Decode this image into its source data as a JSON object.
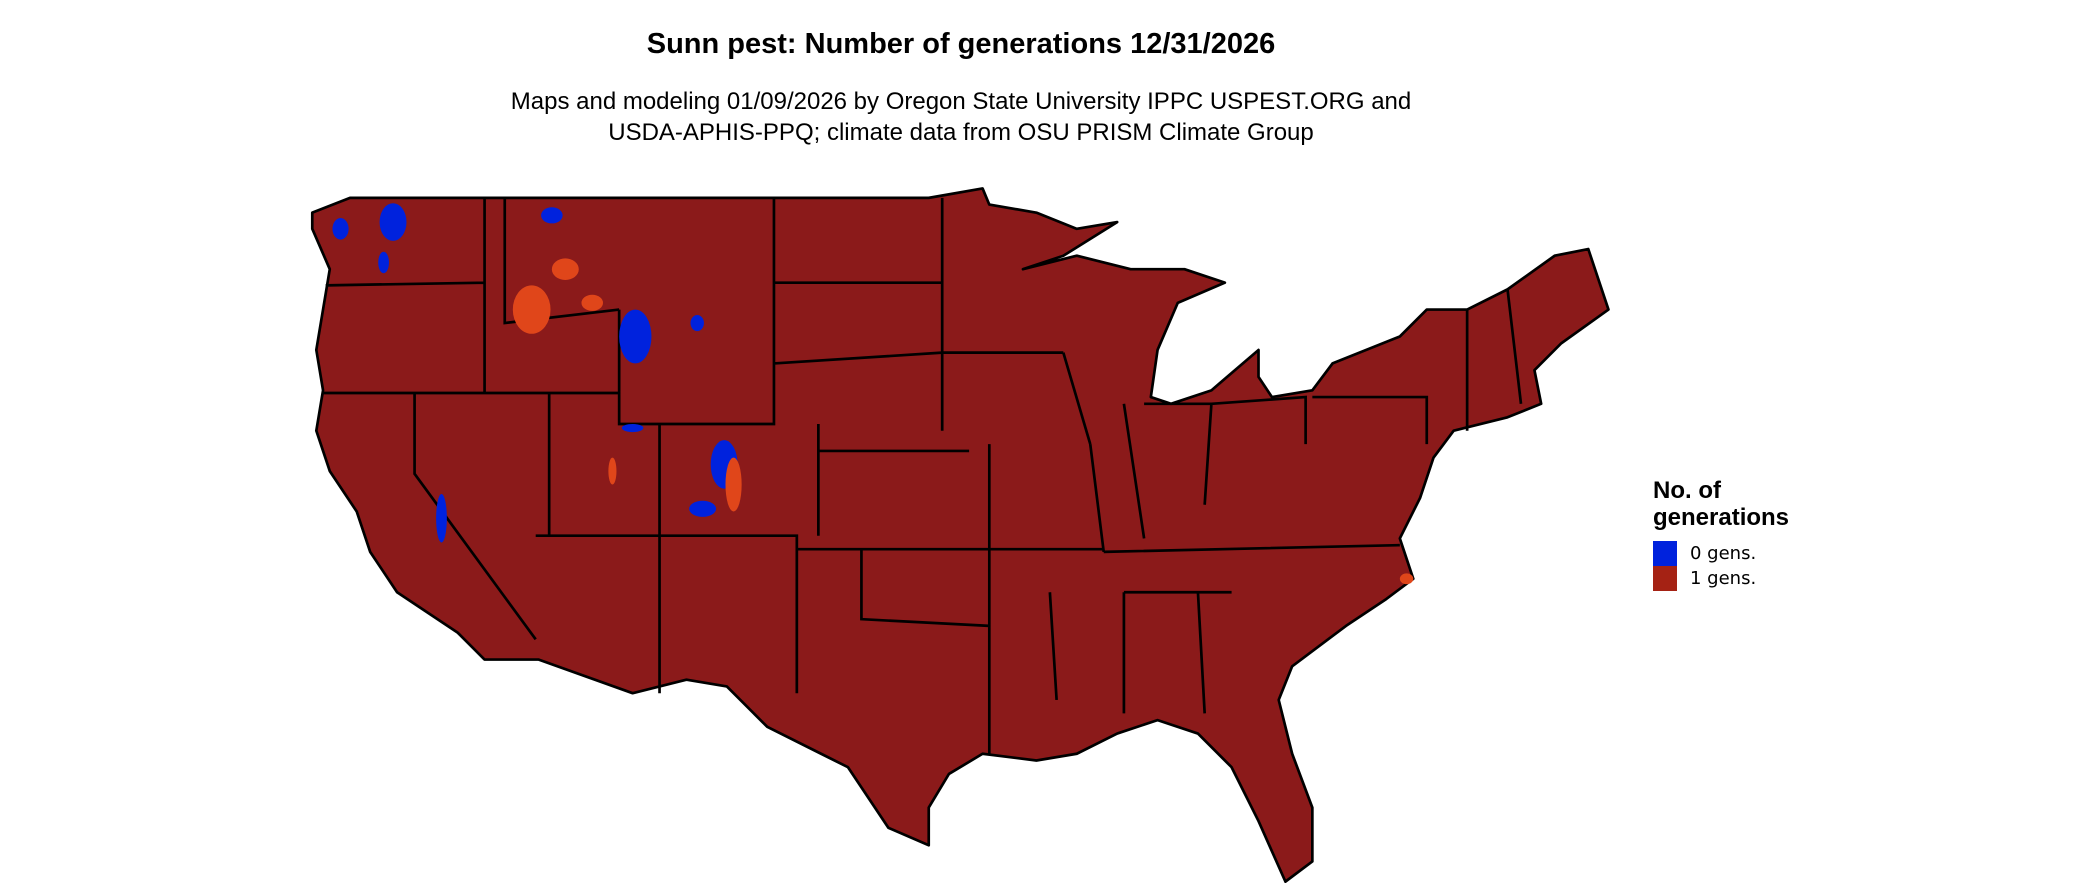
{
  "title": "Sunn pest: Number of generations 12/31/2026",
  "subtitle_line1": "Maps and modeling 01/09/2026 by Oregon State University IPPC USPEST.ORG and",
  "subtitle_line2": "USDA-APHIS-PPQ; climate data from OSU PRISM Climate Group",
  "map": {
    "region": "Contiguous United States",
    "colors": {
      "state_fill": "#8B1A1A",
      "state_border": "#000000",
      "orange_patches": "#E0461A"
    }
  },
  "legend": {
    "title_line1": "No. of",
    "title_line2": "generations",
    "items": [
      {
        "label": "0 gens.",
        "color": "#0022DD"
      },
      {
        "label": "1 gens.",
        "color": "#A52214"
      }
    ]
  }
}
